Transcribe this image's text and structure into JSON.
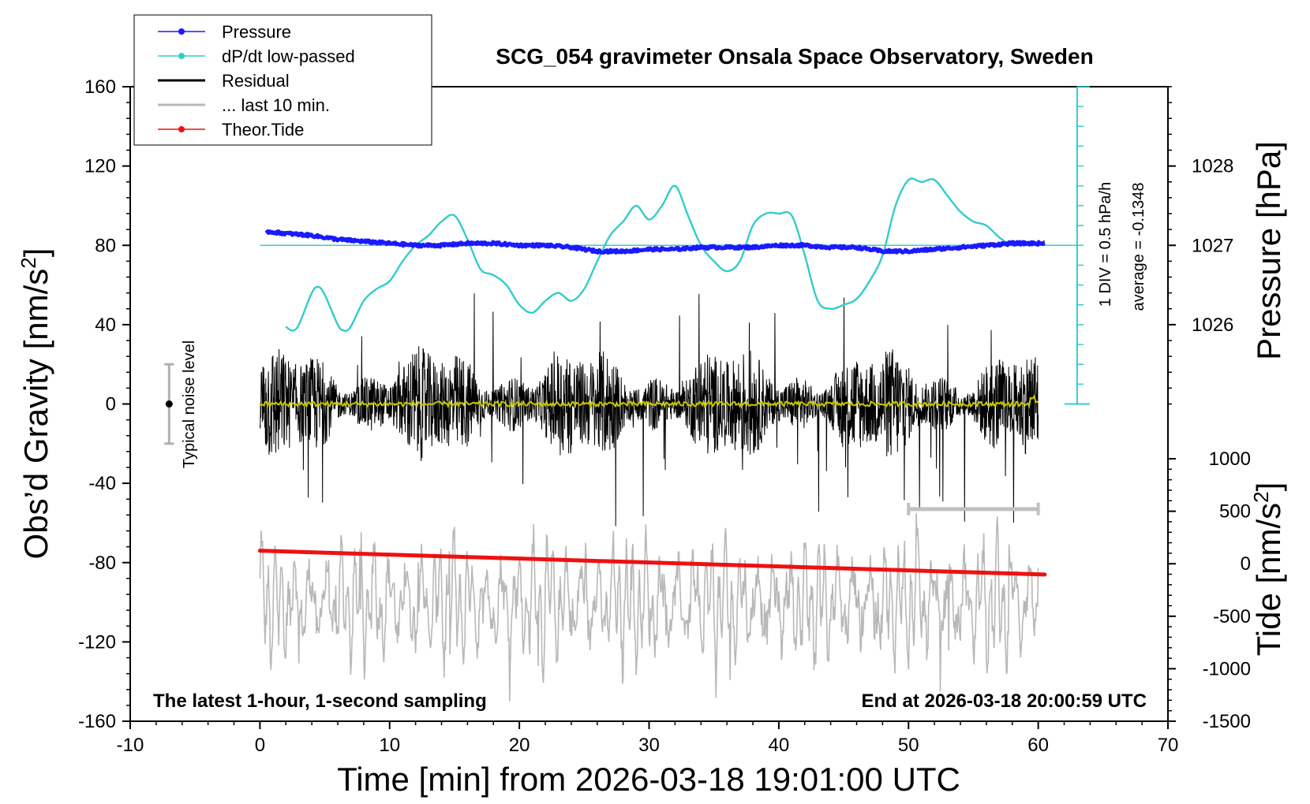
{
  "chart_data": {
    "type": "line",
    "title": "SCG_054 gravimeter Onsala Space Observatory, Sweden",
    "xlabel": "Time [min] from 2026-03-18 19:01:00 UTC",
    "ylabel_left": "Obs’d Gravity [nm/s",
    "ylabel_left_sup": "2",
    "ylabel_left_close": "]",
    "ylabel_right_top": "Pressure [hPa]",
    "ylabel_right_bottom": "Tide [nm/s",
    "ylabel_right_bottom_sup": "2",
    "ylabel_right_bottom_close": "]",
    "xlim": [
      -10,
      70
    ],
    "ylim": [
      -160,
      160
    ],
    "x_ticks": [
      "-10",
      "0",
      "10",
      "20",
      "30",
      "40",
      "50",
      "60",
      "70"
    ],
    "y_ticks": [
      "160",
      "120",
      "80",
      "40",
      "0",
      "-40",
      "-80",
      "-120",
      "-160"
    ],
    "pressure_ticks": [
      "1028",
      "1027",
      "1026"
    ],
    "tide_ticks": [
      "1000",
      "500",
      "0",
      "-500",
      "-1000",
      "-1500"
    ],
    "pressure_axis": {
      "units": "hPa",
      "value_at_gravity_0": 1025,
      "hpa_per_gravity_40": 1
    },
    "tide_axis": {
      "units": "nm/s2",
      "ticks": [
        1000,
        500,
        0,
        -500,
        -1000,
        -1500
      ]
    },
    "legend": [
      {
        "label": "Pressure",
        "color": "#1a1aff",
        "marker": true
      },
      {
        "label": "dP/dt low-passed",
        "color": "#33cccc",
        "marker": true
      },
      {
        "label": "Residual",
        "color": "#000000",
        "marker": false
      },
      {
        "label": "... last 10 min.",
        "color": "#b8b8b8",
        "marker": false
      },
      {
        "label": "Theor.Tide",
        "color": "#ee1111",
        "marker": true
      }
    ],
    "series": [
      {
        "name": "Pressure",
        "color": "#1a1aff",
        "axis": "gravity",
        "x": [
          0.5,
          2,
          4,
          6,
          8,
          10,
          12,
          14,
          16,
          18,
          20,
          22,
          24,
          26,
          28,
          30,
          32,
          34,
          36,
          38,
          40,
          42,
          44,
          46,
          48,
          50,
          52,
          54,
          56,
          58,
          60,
          60.5
        ],
        "values": [
          87,
          86,
          85,
          83,
          82,
          81,
          80,
          80,
          81,
          81,
          80,
          80,
          79,
          77,
          77,
          78,
          78,
          79,
          79,
          79,
          80,
          80,
          79,
          79,
          77,
          77,
          78,
          79,
          80,
          81,
          81,
          81
        ]
      },
      {
        "name": "dP/dt low-passed",
        "color": "#33cccc",
        "axis": "gravity",
        "x": [
          2,
          2.5,
          3,
          4,
          4.5,
          5,
          6,
          6.5,
          7,
          8,
          9,
          10,
          11,
          12,
          13,
          14,
          15,
          16,
          17,
          18,
          19,
          20,
          21,
          22,
          23,
          24,
          25,
          26,
          27,
          28,
          29,
          30,
          31,
          32,
          33,
          34,
          35,
          36,
          37,
          38,
          39,
          40,
          41,
          42,
          43,
          44,
          45,
          46,
          47,
          48,
          49,
          50,
          51,
          52,
          53,
          54,
          55,
          56,
          57,
          58,
          59,
          60
        ],
        "values": [
          39,
          37,
          40,
          56,
          59,
          55,
          40,
          37,
          39,
          52,
          58,
          62,
          72,
          80,
          85,
          92,
          95,
          83,
          68,
          65,
          60,
          50,
          46,
          52,
          56,
          52,
          58,
          72,
          85,
          92,
          100,
          93,
          100,
          110,
          95,
          80,
          72,
          67,
          72,
          90,
          96,
          96,
          95,
          75,
          52,
          48,
          50,
          53,
          62,
          75,
          100,
          113,
          112,
          113,
          105,
          97,
          92,
          90,
          84,
          80,
          81,
          81
        ]
      },
      {
        "name": "Theor.Tide",
        "color": "#ee1111",
        "axis": "gravity",
        "x": [
          0,
          60.5
        ],
        "values": [
          -74,
          -86
        ]
      },
      {
        "name": "Residual",
        "color": "#000000",
        "axis": "gravity",
        "x_range": [
          0,
          60
        ],
        "typical_amplitude": 25,
        "max_excursion": [
          -62,
          62
        ]
      },
      {
        "name": "Residual smoothed",
        "color": "#c8c800",
        "axis": "gravity",
        "x_range": [
          0,
          60
        ],
        "values_approx": [
          0,
          0
        ]
      },
      {
        "name": "... last 10 min.",
        "color": "#b8b8b8",
        "axis": "gravity",
        "x_range": [
          0,
          60
        ],
        "baseline": -100,
        "amplitude_range": [
          -150,
          -55
        ]
      }
    ],
    "annotations": {
      "noise_label": "Typical noise level",
      "noise_bar": {
        "x": -7,
        "center": 0,
        "low": -20,
        "high": 20
      },
      "div_label": "1 DIV = 0.5 hPa/h",
      "average_label": "average = -0.1348",
      "dpdt_scale": {
        "x": 63,
        "from": 0,
        "to": 160,
        "baseline": 80,
        "divisions": 16
      },
      "last10_bar": {
        "from": 50,
        "to": 60,
        "y": -53
      },
      "bottom_left": "The latest 1-hour, 1-second sampling",
      "bottom_right": "End at 2026-03-18 20:00:59 UTC"
    }
  }
}
